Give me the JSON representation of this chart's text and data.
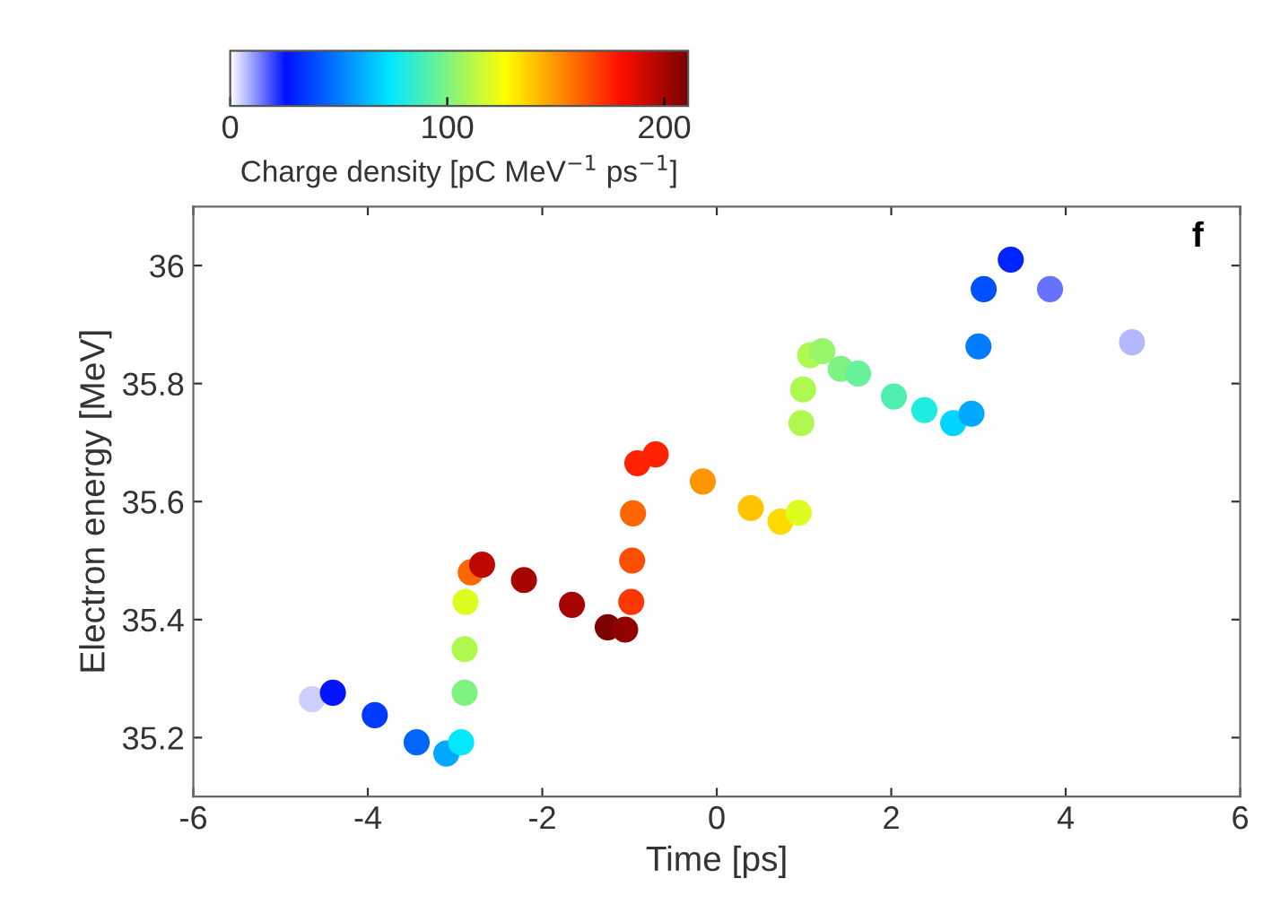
{
  "chart_data": {
    "type": "scatter",
    "xlabel": "Time [ps]",
    "ylabel": "Electron energy [MeV]",
    "clabel": "Charge density [pC MeV$^{−1}$ ps$^{−1}$]",
    "annotations": [
      "f"
    ],
    "x": [
      -4.64,
      -4.4,
      -3.92,
      -3.44,
      -3.1,
      -2.93,
      -2.89,
      -2.89,
      -2.88,
      -2.82,
      -2.69,
      -2.21,
      -1.66,
      -1.25,
      -1.05,
      -0.98,
      -0.97,
      -0.96,
      -0.91,
      -0.7,
      -0.16,
      0.39,
      0.73,
      0.94,
      0.97,
      0.99,
      1.07,
      1.21,
      1.42,
      1.62,
      2.03,
      2.38,
      2.71,
      2.92,
      3.0,
      3.06,
      3.37,
      3.82,
      4.76
    ],
    "values": [
      35.265,
      35.276,
      35.238,
      35.192,
      35.173,
      35.192,
      35.276,
      35.35,
      35.43,
      35.48,
      35.493,
      35.467,
      35.425,
      35.387,
      35.383,
      35.43,
      35.5,
      35.58,
      35.665,
      35.68,
      35.634,
      35.589,
      35.566,
      35.581,
      35.733,
      35.79,
      35.848,
      35.855,
      35.825,
      35.817,
      35.778,
      35.755,
      35.733,
      35.749,
      35.863,
      35.96,
      36.01,
      35.96,
      35.87
    ],
    "cvalues": [
      5,
      25,
      35,
      45,
      60,
      75,
      100,
      110,
      120,
      160,
      195,
      200,
      200,
      210,
      205,
      170,
      165,
      160,
      175,
      175,
      150,
      140,
      135,
      120,
      110,
      110,
      110,
      105,
      100,
      95,
      90,
      80,
      70,
      60,
      50,
      40,
      30,
      15,
      8
    ],
    "xlim": [
      -6,
      6
    ],
    "ylim": [
      35.1,
      36.1
    ],
    "xticks": [
      -6,
      -4,
      -2,
      0,
      2,
      4,
      6
    ],
    "yticks": [
      35.2,
      35.4,
      35.6,
      35.8,
      36
    ],
    "clim": [
      0,
      211
    ],
    "cticks": [
      0,
      100,
      200
    ],
    "grid": false,
    "marker": "circle"
  }
}
